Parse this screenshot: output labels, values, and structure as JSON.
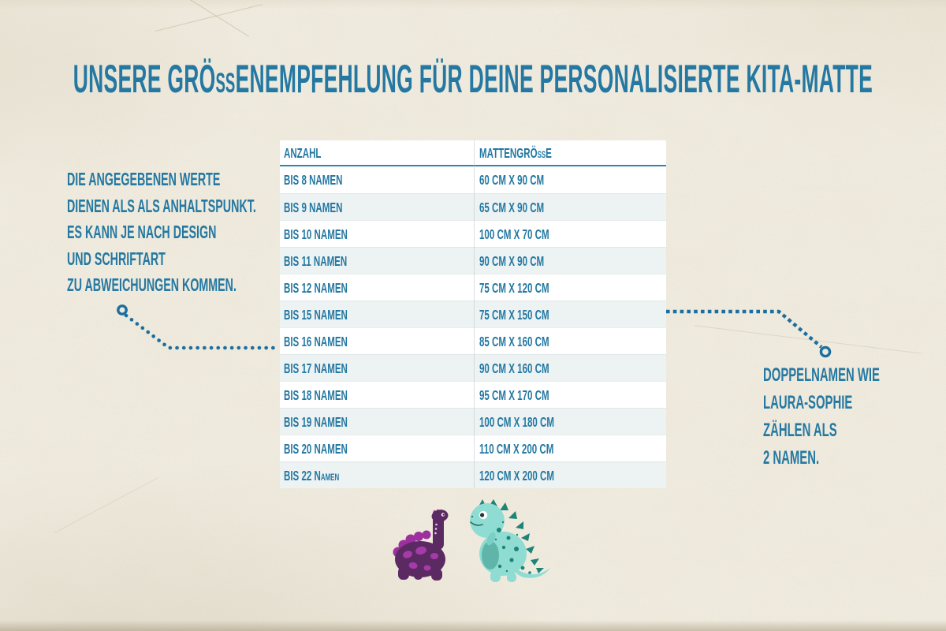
{
  "header": {
    "title": "UNSERE GRÖßENEMPFEHLUNG FÜR DEINE PERSONALISIERTE KITA-MATTE"
  },
  "left_note": {
    "lines": [
      "DIE ANGEGEBENEN WERTE",
      "DIENEN ALS ALS ANHALTSPUNKT.",
      "ES KANN JE NACH DESIGN",
      "UND SCHRIFTART",
      "ZU ABWEICHUNGEN KOMMEN."
    ]
  },
  "right_note": {
    "lines": [
      "DOPPELNAMEN WIE",
      "LAURA-SOPHIE",
      "ZÄHLEN ALS",
      "2 NAMEN."
    ]
  },
  "table": {
    "columns": [
      "ANZAHL",
      "MATTENGRÖßE"
    ],
    "rows": [
      [
        "BIS 8 NAMEN",
        "60 CM X 90 CM"
      ],
      [
        "BIS 9 NAMEN",
        "65 CM X 90 CM"
      ],
      [
        "BIS 10 NAMEN",
        "100 CM X 70 CM"
      ],
      [
        "BIS 11 NAMEN",
        "90 CM X 90 CM"
      ],
      [
        "BIS 12 NAMEN",
        "75 CM X 120 CM"
      ],
      [
        "BIS 15 NAMEN",
        "75 CM X 150 CM"
      ],
      [
        "BIS 16 NAMEN",
        "85 CM X 160 CM"
      ],
      [
        "BIS 17 NAMEN",
        "90 CM X 160 CM"
      ],
      [
        "BIS 18 NAMEN",
        "95 CM X 170 CM"
      ],
      [
        "BIS 19 NAMEN",
        "100 CM X 180 CM"
      ],
      [
        "BIS 20 NAMEN",
        "110 CM X 200 CM"
      ],
      [
        "BIS 22 Namen",
        "120 CM X 200 CM"
      ]
    ]
  },
  "illustrations": {
    "left": "purple-dinosaur",
    "right": "teal-dinosaur"
  },
  "colors": {
    "accent_teal": "#2478a2",
    "connector_teal": "#1a6fa0",
    "paper": "#f2eee2",
    "row_alt": "#edf2f3",
    "dino_purple": "#5c2a62",
    "dino_magenta": "#9e2f9f",
    "dino_spot": "#a53aa9",
    "dino_teal": "#8fdcd3",
    "dino_teal_dark": "#1f8378",
    "dino_belly": "#5fb5aa"
  }
}
